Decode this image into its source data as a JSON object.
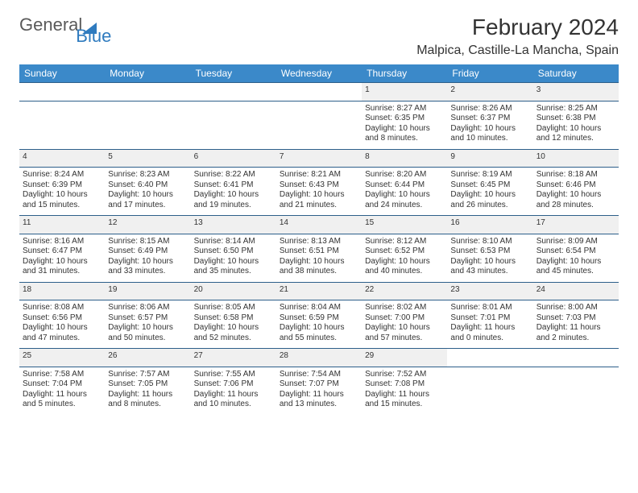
{
  "brand": {
    "general": "General",
    "blue": "Blue"
  },
  "title": "February 2024",
  "location": "Malpica, Castille-La Mancha, Spain",
  "colors": {
    "header_bg": "#3b89c9",
    "header_text": "#ffffff",
    "daynum_bg": "#f0f0f0",
    "border": "#2d5f8a",
    "brand_blue": "#2f7bbf"
  },
  "daysOfWeek": [
    "Sunday",
    "Monday",
    "Tuesday",
    "Wednesday",
    "Thursday",
    "Friday",
    "Saturday"
  ],
  "weeks": [
    [
      null,
      null,
      null,
      null,
      {
        "num": "1",
        "sunrise": "8:27 AM",
        "sunset": "6:35 PM",
        "day_h": "10",
        "day_m": "8"
      },
      {
        "num": "2",
        "sunrise": "8:26 AM",
        "sunset": "6:37 PM",
        "day_h": "10",
        "day_m": "10"
      },
      {
        "num": "3",
        "sunrise": "8:25 AM",
        "sunset": "6:38 PM",
        "day_h": "10",
        "day_m": "12"
      }
    ],
    [
      {
        "num": "4",
        "sunrise": "8:24 AM",
        "sunset": "6:39 PM",
        "day_h": "10",
        "day_m": "15"
      },
      {
        "num": "5",
        "sunrise": "8:23 AM",
        "sunset": "6:40 PM",
        "day_h": "10",
        "day_m": "17"
      },
      {
        "num": "6",
        "sunrise": "8:22 AM",
        "sunset": "6:41 PM",
        "day_h": "10",
        "day_m": "19"
      },
      {
        "num": "7",
        "sunrise": "8:21 AM",
        "sunset": "6:43 PM",
        "day_h": "10",
        "day_m": "21"
      },
      {
        "num": "8",
        "sunrise": "8:20 AM",
        "sunset": "6:44 PM",
        "day_h": "10",
        "day_m": "24"
      },
      {
        "num": "9",
        "sunrise": "8:19 AM",
        "sunset": "6:45 PM",
        "day_h": "10",
        "day_m": "26"
      },
      {
        "num": "10",
        "sunrise": "8:18 AM",
        "sunset": "6:46 PM",
        "day_h": "10",
        "day_m": "28"
      }
    ],
    [
      {
        "num": "11",
        "sunrise": "8:16 AM",
        "sunset": "6:47 PM",
        "day_h": "10",
        "day_m": "31"
      },
      {
        "num": "12",
        "sunrise": "8:15 AM",
        "sunset": "6:49 PM",
        "day_h": "10",
        "day_m": "33"
      },
      {
        "num": "13",
        "sunrise": "8:14 AM",
        "sunset": "6:50 PM",
        "day_h": "10",
        "day_m": "35"
      },
      {
        "num": "14",
        "sunrise": "8:13 AM",
        "sunset": "6:51 PM",
        "day_h": "10",
        "day_m": "38"
      },
      {
        "num": "15",
        "sunrise": "8:12 AM",
        "sunset": "6:52 PM",
        "day_h": "10",
        "day_m": "40"
      },
      {
        "num": "16",
        "sunrise": "8:10 AM",
        "sunset": "6:53 PM",
        "day_h": "10",
        "day_m": "43"
      },
      {
        "num": "17",
        "sunrise": "8:09 AM",
        "sunset": "6:54 PM",
        "day_h": "10",
        "day_m": "45"
      }
    ],
    [
      {
        "num": "18",
        "sunrise": "8:08 AM",
        "sunset": "6:56 PM",
        "day_h": "10",
        "day_m": "47"
      },
      {
        "num": "19",
        "sunrise": "8:06 AM",
        "sunset": "6:57 PM",
        "day_h": "10",
        "day_m": "50"
      },
      {
        "num": "20",
        "sunrise": "8:05 AM",
        "sunset": "6:58 PM",
        "day_h": "10",
        "day_m": "52"
      },
      {
        "num": "21",
        "sunrise": "8:04 AM",
        "sunset": "6:59 PM",
        "day_h": "10",
        "day_m": "55"
      },
      {
        "num": "22",
        "sunrise": "8:02 AM",
        "sunset": "7:00 PM",
        "day_h": "10",
        "day_m": "57"
      },
      {
        "num": "23",
        "sunrise": "8:01 AM",
        "sunset": "7:01 PM",
        "day_h": "11",
        "day_m": "0"
      },
      {
        "num": "24",
        "sunrise": "8:00 AM",
        "sunset": "7:03 PM",
        "day_h": "11",
        "day_m": "2"
      }
    ],
    [
      {
        "num": "25",
        "sunrise": "7:58 AM",
        "sunset": "7:04 PM",
        "day_h": "11",
        "day_m": "5"
      },
      {
        "num": "26",
        "sunrise": "7:57 AM",
        "sunset": "7:05 PM",
        "day_h": "11",
        "day_m": "8"
      },
      {
        "num": "27",
        "sunrise": "7:55 AM",
        "sunset": "7:06 PM",
        "day_h": "11",
        "day_m": "10"
      },
      {
        "num": "28",
        "sunrise": "7:54 AM",
        "sunset": "7:07 PM",
        "day_h": "11",
        "day_m": "13"
      },
      {
        "num": "29",
        "sunrise": "7:52 AM",
        "sunset": "7:08 PM",
        "day_h": "11",
        "day_m": "15"
      },
      null,
      null
    ]
  ],
  "labels": {
    "sunrise": "Sunrise: ",
    "sunset": "Sunset: ",
    "daylight_pre": "Daylight: ",
    "daylight_mid": " hours and ",
    "daylight_post": " minutes."
  }
}
